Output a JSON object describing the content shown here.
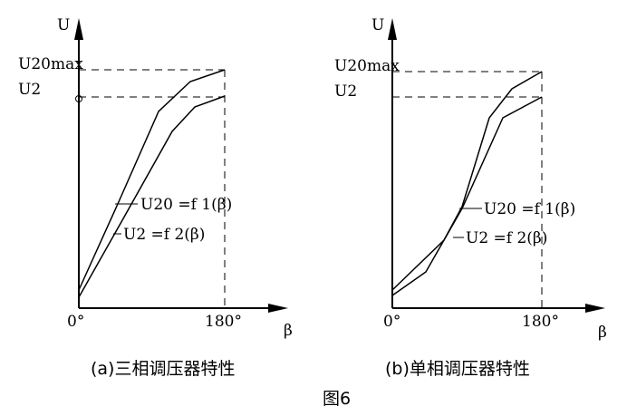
{
  "figure_label": "图6",
  "panels": [
    {
      "id": "a",
      "caption": "(a)三相调压器特性",
      "y_axis_label": "U",
      "x_axis_label": "β",
      "x_tick_start": "0°",
      "x_tick_end": "180°",
      "level_top_label": "U20max",
      "level_mid_label": "U2",
      "curve1_label": "U20 =f 1(β)",
      "curve2_label": "U2 =f 2(β)"
    },
    {
      "id": "b",
      "caption": "(b)单相调压器特性",
      "y_axis_label": "U",
      "x_axis_label": "β",
      "x_tick_start": "0°",
      "x_tick_end": "180°",
      "level_top_label": "U20max",
      "level_mid_label": "U2",
      "curve1_label": "U20 =f 1(β)",
      "curve2_label": "U2 =f 2(β)"
    }
  ]
}
